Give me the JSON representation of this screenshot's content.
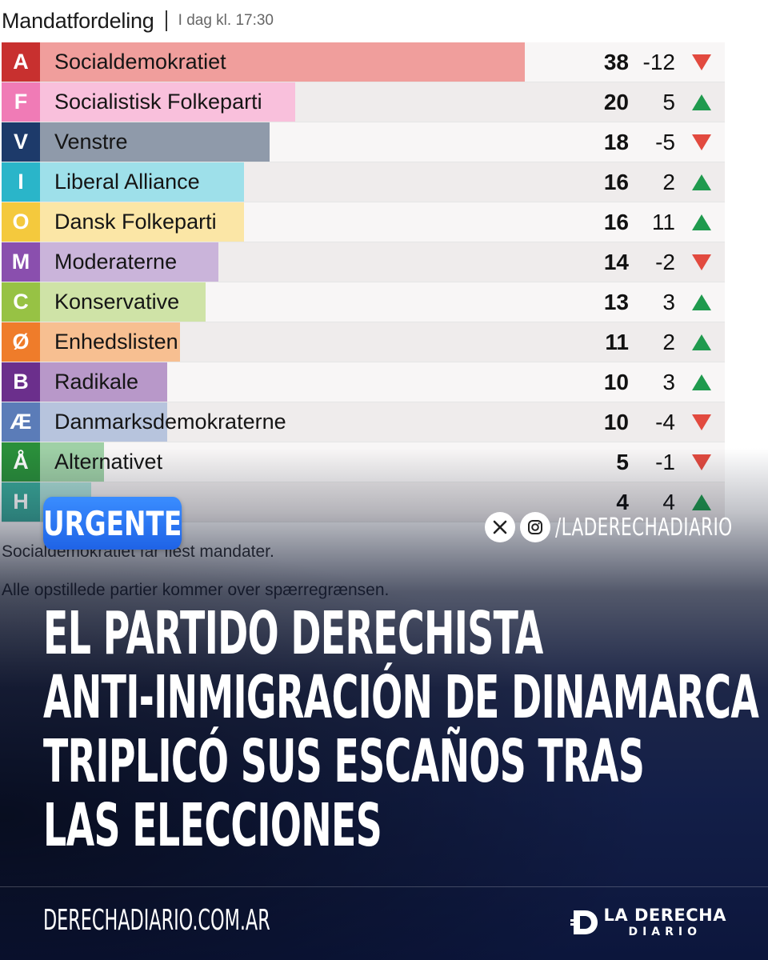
{
  "chart_data": {
    "type": "bar",
    "title": "Mandatfordeling",
    "subtitle": "I dag kl. 17:30",
    "max_value": 38,
    "rows": [
      {
        "letter": "A",
        "name": "Socialdemokratiet",
        "seats": 38,
        "change": "-12",
        "trend": "down",
        "badge_color": "#c8302f",
        "bar_color": "#f09e9c"
      },
      {
        "letter": "F",
        "name": "Socialistisk Folkeparti",
        "seats": 20,
        "change": "5",
        "trend": "up",
        "badge_color": "#f07bb6",
        "bar_color": "#f9c0dc"
      },
      {
        "letter": "V",
        "name": "Venstre",
        "seats": 18,
        "change": "-5",
        "trend": "down",
        "badge_color": "#1d3a6a",
        "bar_color": "#8f9aaa"
      },
      {
        "letter": "I",
        "name": "Liberal Alliance",
        "seats": 16,
        "change": "2",
        "trend": "up",
        "badge_color": "#2ab5c9",
        "bar_color": "#9ee0ea"
      },
      {
        "letter": "O",
        "name": "Dansk Folkeparti",
        "seats": 16,
        "change": "11",
        "trend": "up",
        "badge_color": "#f4c93d",
        "bar_color": "#fbe6a6"
      },
      {
        "letter": "M",
        "name": "Moderaterne",
        "seats": 14,
        "change": "-2",
        "trend": "down",
        "badge_color": "#8a4fae",
        "bar_color": "#cab4da"
      },
      {
        "letter": "C",
        "name": "Konservative",
        "seats": 13,
        "change": "3",
        "trend": "up",
        "badge_color": "#97c244",
        "bar_color": "#cfe3a7"
      },
      {
        "letter": "Ø",
        "name": "Enhedslisten",
        "seats": 11,
        "change": "2",
        "trend": "up",
        "badge_color": "#ef7c2a",
        "bar_color": "#f7bf91"
      },
      {
        "letter": "B",
        "name": "Radikale",
        "seats": 10,
        "change": "3",
        "trend": "up",
        "badge_color": "#6b2f8c",
        "bar_color": "#b898c9"
      },
      {
        "letter": "Æ",
        "name": "Danmarksdemokraterne",
        "seats": 10,
        "change": "-4",
        "trend": "down",
        "badge_color": "#5b7cb8",
        "bar_color": "#b7c4dd"
      },
      {
        "letter": "Å",
        "name": "Alternativet",
        "seats": 5,
        "change": "-1",
        "trend": "down",
        "badge_color": "#2a8f3a",
        "bar_color": "#9fd0a6"
      },
      {
        "letter": "H",
        "name": "",
        "seats": 4,
        "change": "4",
        "trend": "up",
        "badge_color": "#3aa999",
        "bar_color": "#a9dcd4"
      }
    ],
    "notes": [
      "Socialdemokratiet får flest mandater.",
      "Alle opstillede partier kommer over spærregrænsen."
    ]
  },
  "colors": {
    "up": "#1f9a4e",
    "down": "#e24a3f"
  },
  "overlay": {
    "badge": "URGENTE",
    "social_handle": "/LADERECHADIARIO",
    "social_icons": [
      "x-icon",
      "instagram-icon"
    ],
    "headline": [
      "EL PARTIDO DERECHISTA",
      "ANTI-INMIGRACIÓN DE DINAMARCA",
      "TRIPLICÓ SUS ESCAÑOS TRAS",
      "LAS ELECCIONES"
    ],
    "site_url": "DERECHADIARIO.COM.AR",
    "brand_line1": "LA DERECHA",
    "brand_line2": "DIARIO"
  }
}
